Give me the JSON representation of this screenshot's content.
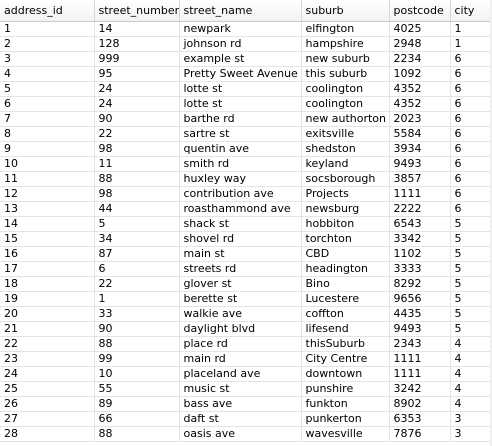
{
  "table": {
    "columns": [
      "address_id",
      "street_number",
      "street_name",
      "suburb",
      "postcode",
      "city"
    ],
    "rows": [
      [
        "1",
        "14",
        "newpark",
        "elfington",
        "4025",
        "1"
      ],
      [
        "2",
        "128",
        "johnson rd",
        "hampshire",
        "2948",
        "1"
      ],
      [
        "3",
        "999",
        "example st",
        "new suburb",
        "2234",
        "6"
      ],
      [
        "4",
        "95",
        "Pretty Sweet Avenue",
        "this suburb",
        "1092",
        "6"
      ],
      [
        "5",
        "24",
        "lotte st",
        "coolington",
        "4352",
        "6"
      ],
      [
        "6",
        "24",
        "lotte st",
        "coolington",
        "4352",
        "6"
      ],
      [
        "7",
        "90",
        "barthe rd",
        "new authorton",
        "2023",
        "6"
      ],
      [
        "8",
        "22",
        "sartre st",
        "exitsville",
        "5584",
        "6"
      ],
      [
        "9",
        "98",
        "quentin ave",
        "shedston",
        "3934",
        "6"
      ],
      [
        "10",
        "11",
        "smith rd",
        "keyland",
        "9493",
        "6"
      ],
      [
        "11",
        "88",
        "huxley way",
        "socsborough",
        "3857",
        "6"
      ],
      [
        "12",
        "98",
        "contribution ave",
        "Projects",
        "1111",
        "6"
      ],
      [
        "13",
        "44",
        "roasthammond ave",
        "newsburg",
        "2222",
        "6"
      ],
      [
        "14",
        "5",
        "shack st",
        "hobbiton",
        "6543",
        "5"
      ],
      [
        "15",
        "34",
        "shovel rd",
        "torchton",
        "3342",
        "5"
      ],
      [
        "16",
        "87",
        "main st",
        "CBD",
        "1102",
        "5"
      ],
      [
        "17",
        "6",
        "streets rd",
        "headington",
        "3333",
        "5"
      ],
      [
        "18",
        "22",
        "glover st",
        "Bino",
        "8292",
        "5"
      ],
      [
        "19",
        "1",
        "berette st",
        "Lucestere",
        "9656",
        "5"
      ],
      [
        "20",
        "33",
        "walkie ave",
        "coffton",
        "4435",
        "5"
      ],
      [
        "21",
        "90",
        "daylight blvd",
        "lifesend",
        "9493",
        "5"
      ],
      [
        "22",
        "88",
        "place rd",
        "thisSuburb",
        "2343",
        "4"
      ],
      [
        "23",
        "99",
        "main rd",
        "City Centre",
        "1111",
        "4"
      ],
      [
        "24",
        "10",
        "placeland ave",
        "downtown",
        "1111",
        "4"
      ],
      [
        "25",
        "55",
        "music st",
        "punshire",
        "3242",
        "4"
      ],
      [
        "26",
        "89",
        "bass ave",
        "funkton",
        "8902",
        "4"
      ],
      [
        "27",
        "66",
        "daft st",
        "punkerton",
        "6353",
        "3"
      ],
      [
        "28",
        "88",
        "oasis ave",
        "wavesville",
        "7876",
        "3"
      ]
    ]
  }
}
